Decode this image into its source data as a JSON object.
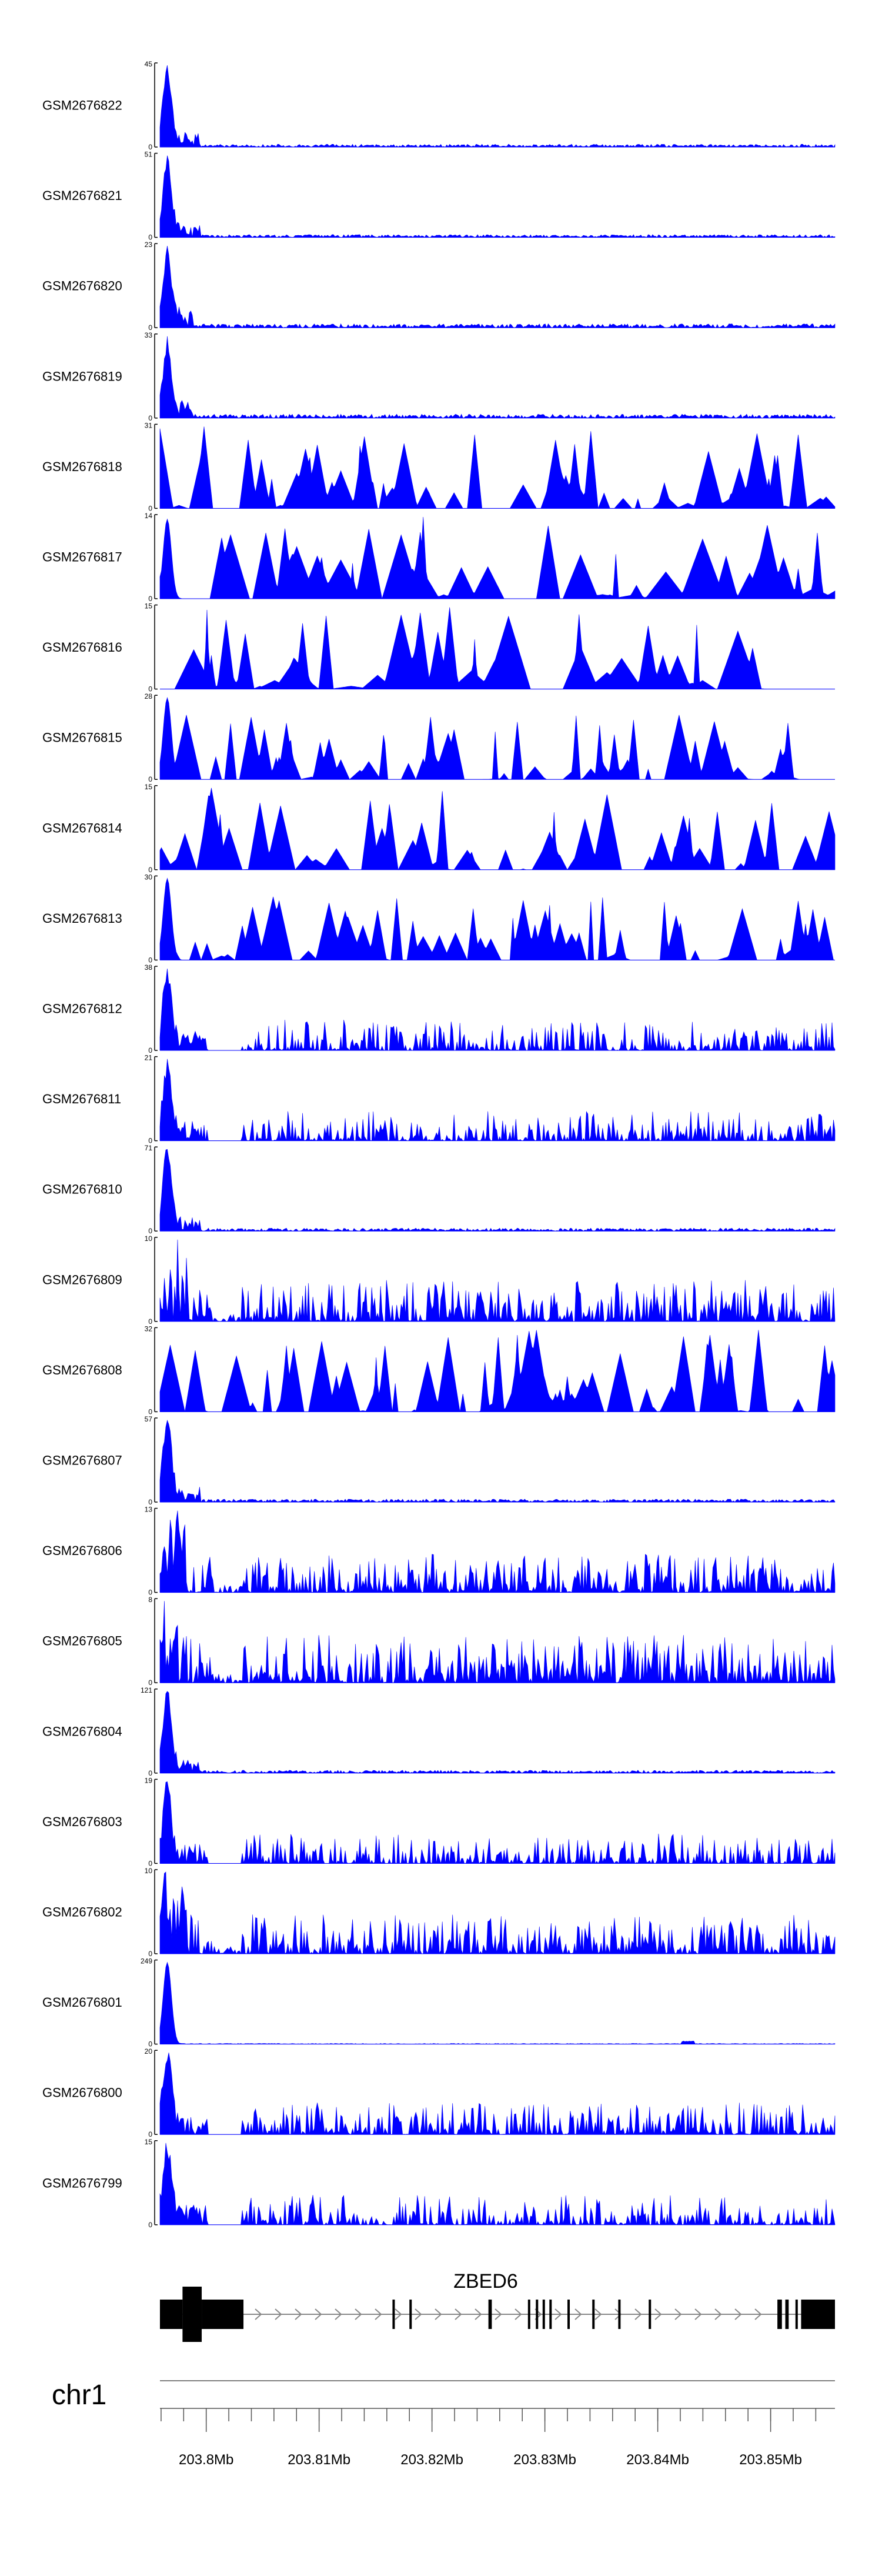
{
  "colors": {
    "signal": "#0000ff",
    "axis": "#000000",
    "gene": "#000000",
    "rule": "#555555"
  },
  "chart_data": {
    "type": "area",
    "title": "",
    "xlabel": "",
    "ylabel": "",
    "x_unit": "Mb",
    "xlim": [
      203.7959,
      203.8557
    ],
    "tracks": [
      {
        "name": "GSM2676822",
        "ymax": 45,
        "peak": 45,
        "profile": "promoter"
      },
      {
        "name": "GSM2676821",
        "ymax": 51,
        "peak": 51,
        "profile": "promoter"
      },
      {
        "name": "GSM2676820",
        "ymax": 23,
        "peak": 23,
        "profile": "promoter-low"
      },
      {
        "name": "GSM2676819",
        "ymax": 33,
        "peak": 33,
        "profile": "promoter-low"
      },
      {
        "name": "GSM2676818",
        "ymax": 31,
        "peak": 31,
        "profile": "spiky"
      },
      {
        "name": "GSM2676817",
        "ymax": 14,
        "peak": 14,
        "profile": "spiky-broad"
      },
      {
        "name": "GSM2676816",
        "ymax": 15,
        "peak": 15,
        "profile": "spiky-broad"
      },
      {
        "name": "GSM2676815",
        "ymax": 28,
        "peak": 28,
        "profile": "spiky"
      },
      {
        "name": "GSM2676814",
        "ymax": 15,
        "peak": 15,
        "profile": "spiky"
      },
      {
        "name": "GSM2676813",
        "ymax": 30,
        "peak": 30,
        "profile": "spiky"
      },
      {
        "name": "GSM2676812",
        "ymax": 38,
        "peak": 38,
        "profile": "promoter-body"
      },
      {
        "name": "GSM2676811",
        "ymax": 21,
        "peak": 21,
        "profile": "promoter-body"
      },
      {
        "name": "GSM2676810",
        "ymax": 71,
        "peak": 71,
        "profile": "promoter"
      },
      {
        "name": "GSM2676809",
        "ymax": 10,
        "peak": 10,
        "profile": "dense"
      },
      {
        "name": "GSM2676808",
        "ymax": 32,
        "peak": 32,
        "profile": "spiky"
      },
      {
        "name": "GSM2676807",
        "ymax": 57,
        "peak": 57,
        "profile": "promoter"
      },
      {
        "name": "GSM2676806",
        "ymax": 13,
        "peak": 13,
        "profile": "dense"
      },
      {
        "name": "GSM2676805",
        "ymax": 8,
        "peak": 8,
        "profile": "dense"
      },
      {
        "name": "GSM2676804",
        "ymax": 121,
        "peak": 121,
        "profile": "promoter"
      },
      {
        "name": "GSM2676803",
        "ymax": 19,
        "peak": 19,
        "profile": "promoter-body"
      },
      {
        "name": "GSM2676802",
        "ymax": 10,
        "peak": 10,
        "profile": "dense"
      },
      {
        "name": "GSM2676801",
        "ymax": 249,
        "peak": 249,
        "profile": "promoter-sharp"
      },
      {
        "name": "GSM2676800",
        "ymax": 20,
        "peak": 20,
        "profile": "promoter-body"
      },
      {
        "name": "GSM2676799",
        "ymax": 15,
        "peak": 15,
        "profile": "promoter-body"
      }
    ],
    "gene": {
      "name": "ZBED6",
      "strand": "+",
      "start": 203.7959,
      "end": 203.8557,
      "exons": [
        [
          203.7959,
          203.7979
        ],
        [
          203.7979,
          203.7996
        ],
        [
          203.7996,
          203.8033
        ],
        [
          203.8165,
          203.8167
        ],
        [
          203.818,
          203.8182
        ],
        [
          203.825,
          203.8253
        ],
        [
          203.8285,
          203.8287
        ],
        [
          203.8292,
          203.8294
        ],
        [
          203.8298,
          203.83
        ],
        [
          203.8304,
          203.8306
        ],
        [
          203.832,
          203.8322
        ],
        [
          203.8342,
          203.8344
        ],
        [
          203.8365,
          203.8367
        ],
        [
          203.8392,
          203.8394
        ],
        [
          203.8506,
          203.851
        ],
        [
          203.8513,
          203.8516
        ],
        [
          203.8522,
          203.8524
        ],
        [
          203.8527,
          203.853
        ],
        [
          203.8536,
          203.8538
        ],
        [
          203.8545,
          203.8547
        ],
        [
          203.8557,
          203.8557
        ]
      ]
    },
    "chromosome": "chr1",
    "axis": {
      "ticks": [
        203.8,
        203.81,
        203.82,
        203.83,
        203.84,
        203.85
      ],
      "tick_labels": [
        "203.8Mb",
        "203.81Mb",
        "203.82Mb",
        "203.83Mb",
        "203.84Mb",
        "203.85Mb"
      ],
      "minor_step": 0.002
    }
  }
}
